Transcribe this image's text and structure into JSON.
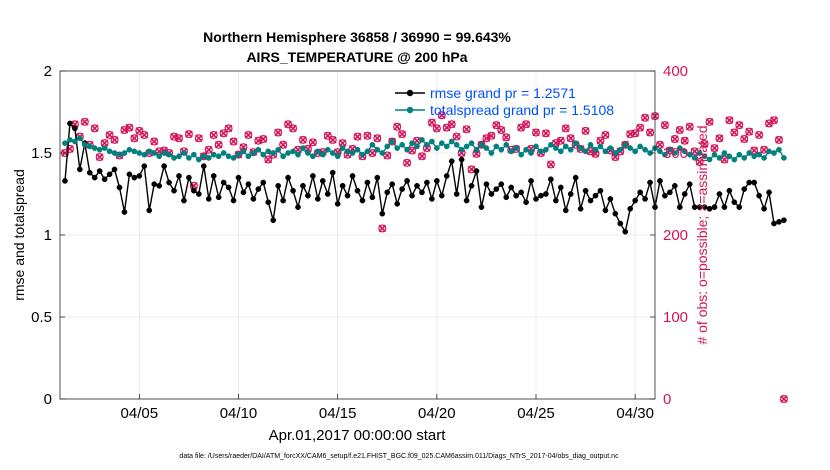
{
  "chart_data": {
    "type": "line",
    "title_line1": "Northern Hemisphere 36858 / 36990 = 99.643%",
    "title_line2": "AIRS_TEMPERATURE @ 200 hPa",
    "xlabel": "Apr.01,2017 00:00:00 start",
    "ylabel_left": "rmse and totalspread",
    "ylabel_right": "# of obs: o=possible; ×=assimilated",
    "footer": "data file: /Users/raeder/DAI/ATM_forcXX/CAM6_setup/f.e21.FHIST_BGC.f09_025.CAM6assim.011/Diags_NTrS_2017-04/obs_diag_output.nc",
    "x_range_days": [
      1,
      31
    ],
    "ylim_left": [
      0,
      2
    ],
    "ylim_right": [
      0,
      400
    ],
    "xticks": [
      {
        "day": 5,
        "label": "04/05"
      },
      {
        "day": 10,
        "label": "04/10"
      },
      {
        "day": 15,
        "label": "04/15"
      },
      {
        "day": 20,
        "label": "04/20"
      },
      {
        "day": 25,
        "label": "04/25"
      },
      {
        "day": 30,
        "label": "04/30"
      }
    ],
    "yticks_left": [
      "0",
      "0.5",
      "1",
      "1.5",
      "2"
    ],
    "yticks_right": [
      "0",
      "100",
      "200",
      "300",
      "400"
    ],
    "colors": {
      "rmse": "#000000",
      "totalspread": "#00807f",
      "obs": "#d4145a",
      "legend_text": "#0050ff"
    },
    "series": [
      {
        "name": "rmse grand pr = 1.2571",
        "key": "rmse",
        "x_start": 1.25,
        "x_step": 0.25,
        "values": [
          1.33,
          1.68,
          1.65,
          1.4,
          1.56,
          1.38,
          1.35,
          1.39,
          1.34,
          1.37,
          1.4,
          1.29,
          1.14,
          1.37,
          1.35,
          1.36,
          1.42,
          1.15,
          1.31,
          1.3,
          1.42,
          1.32,
          1.27,
          1.36,
          1.21,
          1.35,
          1.27,
          1.25,
          1.42,
          1.22,
          1.36,
          1.23,
          1.32,
          1.29,
          1.21,
          1.35,
          1.26,
          1.31,
          1.22,
          1.28,
          1.32,
          1.2,
          1.09,
          1.3,
          1.21,
          1.35,
          1.27,
          1.17,
          1.3,
          1.24,
          1.36,
          1.22,
          1.33,
          1.25,
          1.38,
          1.19,
          1.3,
          1.24,
          1.36,
          1.27,
          1.21,
          1.32,
          1.23,
          1.35,
          1.13,
          1.26,
          1.31,
          1.19,
          1.28,
          1.33,
          1.24,
          1.3,
          1.26,
          1.32,
          1.22,
          1.33,
          1.24,
          1.36,
          1.45,
          1.25,
          1.46,
          1.21,
          1.3,
          1.39,
          1.17,
          1.31,
          1.25,
          1.28,
          1.31,
          1.23,
          1.29,
          1.24,
          1.26,
          1.2,
          1.33,
          1.22,
          1.24,
          1.25,
          1.34,
          1.21,
          1.29,
          1.15,
          1.25,
          1.35,
          1.16,
          1.27,
          1.21,
          1.24,
          1.27,
          1.15,
          1.22,
          1.13,
          1.07,
          1.02,
          1.16,
          1.21,
          1.26,
          1.22,
          1.32,
          1.17,
          1.33,
          1.24,
          1.26,
          1.3,
          1.17,
          1.25,
          1.31,
          1.17,
          1.17,
          1.17,
          1.16,
          1.17,
          1.25,
          1.17,
          1.27,
          1.2,
          1.17,
          1.28,
          1.32,
          1.32,
          1.24,
          1.16,
          1.26,
          1.07,
          1.08,
          1.09
        ]
      },
      {
        "name": "totalspread grand pr = 1.5108",
        "key": "totalspread",
        "x_start": 1.25,
        "x_step": 0.25,
        "values": [
          1.56,
          1.58,
          1.57,
          1.59,
          1.55,
          1.54,
          1.53,
          1.52,
          1.53,
          1.51,
          1.5,
          1.49,
          1.5,
          1.52,
          1.51,
          1.5,
          1.49,
          1.51,
          1.5,
          1.48,
          1.5,
          1.49,
          1.47,
          1.48,
          1.5,
          1.47,
          1.49,
          1.46,
          1.48,
          1.47,
          1.49,
          1.48,
          1.5,
          1.48,
          1.47,
          1.49,
          1.51,
          1.48,
          1.5,
          1.52,
          1.49,
          1.51,
          1.5,
          1.52,
          1.48,
          1.5,
          1.51,
          1.49,
          1.53,
          1.5,
          1.48,
          1.51,
          1.49,
          1.52,
          1.5,
          1.48,
          1.53,
          1.51,
          1.5,
          1.52,
          1.49,
          1.51,
          1.55,
          1.52,
          1.5,
          1.54,
          1.57,
          1.53,
          1.55,
          1.52,
          1.56,
          1.54,
          1.58,
          1.55,
          1.57,
          1.53,
          1.56,
          1.54,
          1.57,
          1.55,
          1.52,
          1.54,
          1.56,
          1.52,
          1.55,
          1.53,
          1.5,
          1.54,
          1.52,
          1.55,
          1.51,
          1.53,
          1.49,
          1.52,
          1.5,
          1.54,
          1.51,
          1.52,
          1.55,
          1.53,
          1.51,
          1.54,
          1.52,
          1.56,
          1.53,
          1.51,
          1.55,
          1.52,
          1.54,
          1.51,
          1.53,
          1.5,
          1.52,
          1.55,
          1.53,
          1.51,
          1.54,
          1.52,
          1.5,
          1.53,
          1.51,
          1.49,
          1.52,
          1.5,
          1.53,
          1.51,
          1.49,
          1.47,
          1.5,
          1.48,
          1.46,
          1.49,
          1.47,
          1.5,
          1.48,
          1.46,
          1.49,
          1.47,
          1.5,
          1.48,
          1.49,
          1.47,
          1.51,
          1.5,
          1.52,
          1.47
        ]
      }
    ],
    "obs_counts": {
      "x_start": 1.25,
      "x_step": 0.25,
      "values": [
        300,
        305,
        335,
        320,
        338,
        310,
        330,
        295,
        312,
        322,
        316,
        297,
        328,
        331,
        318,
        327,
        322,
        300,
        314,
        302,
        303,
        300,
        320,
        318,
        302,
        323,
        260,
        318,
        296,
        304,
        322,
        310,
        324,
        330,
        314,
        298,
        307,
        322,
        301,
        315,
        317,
        292,
        298,
        325,
        310,
        335,
        330,
        304,
        316,
        305,
        313,
        300,
        301,
        321,
        316,
        301,
        312,
        298,
        305,
        320,
        296,
        321,
        300,
        318,
        208,
        297,
        314,
        332,
        323,
        288,
        303,
        315,
        296,
        306,
        337,
        330,
        346,
        331,
        335,
        320,
        300,
        329,
        280,
        299,
        310,
        318,
        321,
        334,
        328,
        319,
        304,
        305,
        331,
        335,
        305,
        325,
        300,
        324,
        286,
        312,
        315,
        330,
        318,
        310,
        305,
        327,
        302,
        299,
        315,
        322,
        303,
        295,
        302,
        310,
        323,
        324,
        331,
        343,
        325,
        345,
        310,
        334,
        303,
        317,
        328,
        315,
        332,
        302,
        289,
        311,
        338,
        306,
        318,
        292,
        340,
        325,
        334,
        317,
        326,
        303,
        322,
        304,
        336,
        340,
        316,
        0
      ]
    }
  }
}
